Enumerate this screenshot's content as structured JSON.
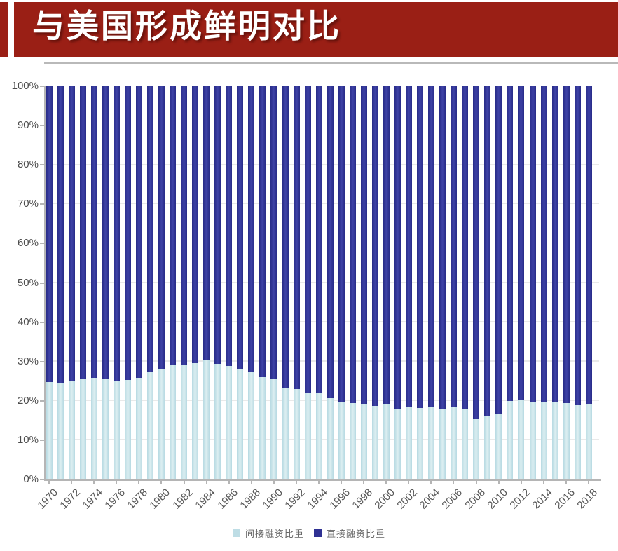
{
  "header": {
    "title": "与美国形成鲜明对比",
    "banner_color": "#9a1f15"
  },
  "chart_data": {
    "type": "bar",
    "subtype": "stacked-100-percent",
    "title": "",
    "xlabel": "",
    "ylabel": "",
    "ylim": [
      0,
      100
    ],
    "grid": true,
    "legend_position": "bottom",
    "y_ticks": [
      "100%",
      "90%",
      "80%",
      "70%",
      "60%",
      "50%",
      "40%",
      "30%",
      "20%",
      "10%",
      "0%"
    ],
    "x_tick_step": 2,
    "categories": [
      1970,
      1971,
      1972,
      1973,
      1974,
      1975,
      1976,
      1977,
      1978,
      1979,
      1980,
      1981,
      1982,
      1983,
      1984,
      1985,
      1986,
      1987,
      1988,
      1989,
      1990,
      1991,
      1992,
      1993,
      1994,
      1995,
      1996,
      1997,
      1998,
      1999,
      2000,
      2001,
      2002,
      2003,
      2004,
      2005,
      2006,
      2007,
      2008,
      2009,
      2010,
      2011,
      2012,
      2013,
      2014,
      2015,
      2016,
      2017,
      2018
    ],
    "series": [
      {
        "name": "间接融资比重",
        "color": "#bedde5",
        "values": [
          24.8,
          24.4,
          24.9,
          25.5,
          25.9,
          25.7,
          25.1,
          25.3,
          25.8,
          27.5,
          27.9,
          29.3,
          29.0,
          29.6,
          30.5,
          29.5,
          28.8,
          27.9,
          27.2,
          26.0,
          25.5,
          23.3,
          23.0,
          21.9,
          22.0,
          20.7,
          19.6,
          19.5,
          19.2,
          18.7,
          19.1,
          18.0,
          18.5,
          18.1,
          18.3,
          18.0,
          18.5,
          17.9,
          15.5,
          16.3,
          16.8,
          20.0,
          20.2,
          19.6,
          19.8,
          19.6,
          19.4,
          18.9,
          19.0
        ]
      },
      {
        "name": "直接融资比重",
        "color": "#2f3193",
        "values": [
          75.2,
          75.6,
          75.1,
          74.5,
          74.1,
          74.3,
          74.9,
          74.7,
          74.2,
          72.5,
          72.1,
          70.7,
          71.0,
          70.4,
          69.5,
          70.5,
          71.2,
          72.1,
          72.8,
          74.0,
          74.5,
          76.7,
          77.0,
          78.1,
          78.0,
          79.3,
          80.4,
          80.5,
          80.8,
          81.3,
          80.9,
          82.0,
          81.5,
          81.9,
          81.7,
          82.0,
          81.5,
          82.1,
          84.5,
          83.7,
          83.2,
          80.0,
          79.8,
          80.4,
          80.2,
          80.4,
          80.6,
          81.1,
          81.0
        ]
      }
    ]
  }
}
